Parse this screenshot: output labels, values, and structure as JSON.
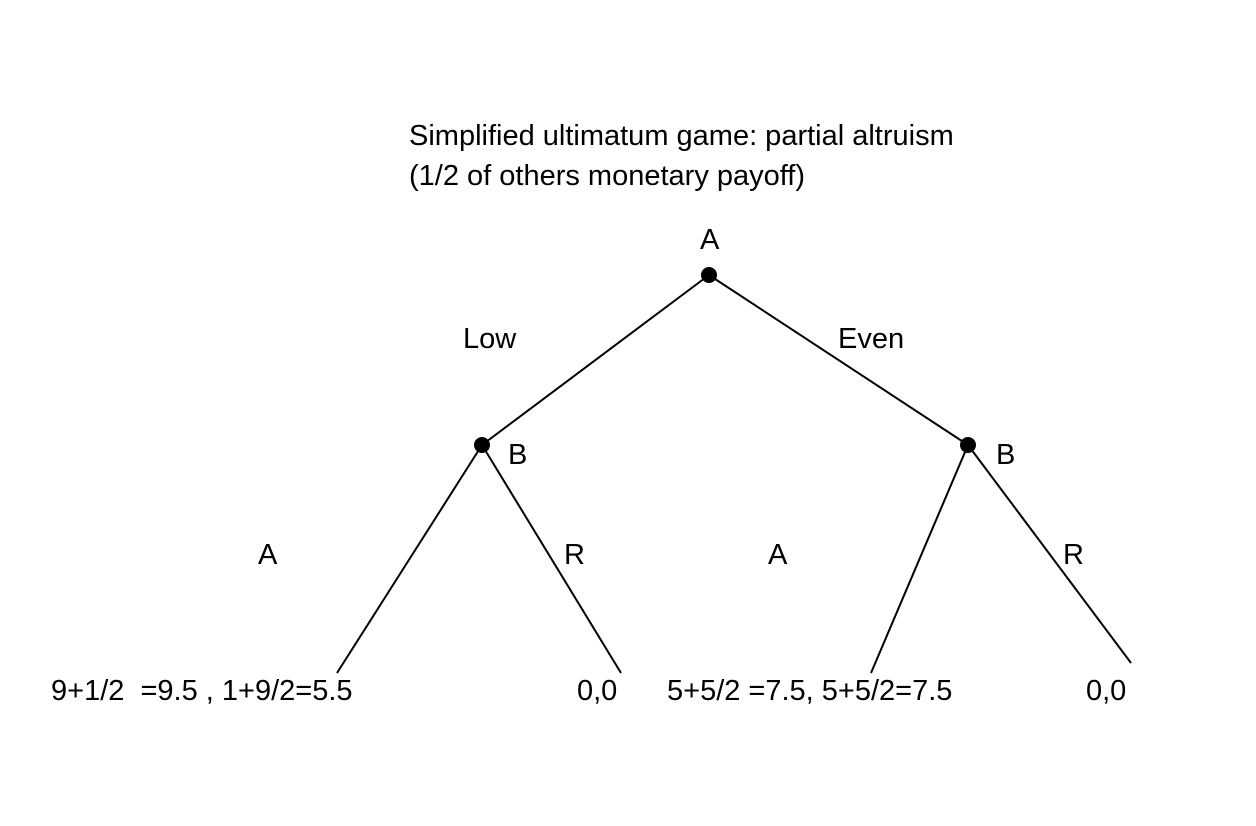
{
  "title": {
    "line1": "Simplified ultimatum game: partial altruism",
    "line2": "(1/2 of others monetary payoff)"
  },
  "root": {
    "player": "A"
  },
  "root_actions": {
    "left": "Low",
    "right": "Even"
  },
  "nodes": {
    "left_player": "B",
    "right_player": "B"
  },
  "responses": {
    "low_accept": "A",
    "low_reject": "R",
    "even_accept": "A",
    "even_reject": "R"
  },
  "payoffs": {
    "low_accept": "9+1/2  =9.5 , 1+9/2=5.5",
    "low_reject": "0,0",
    "even_accept": "5+5/2 =7.5, 5+5/2=7.5",
    "even_reject": "0,0"
  },
  "colors": {
    "ink": "#000000",
    "background": "#ffffff"
  }
}
